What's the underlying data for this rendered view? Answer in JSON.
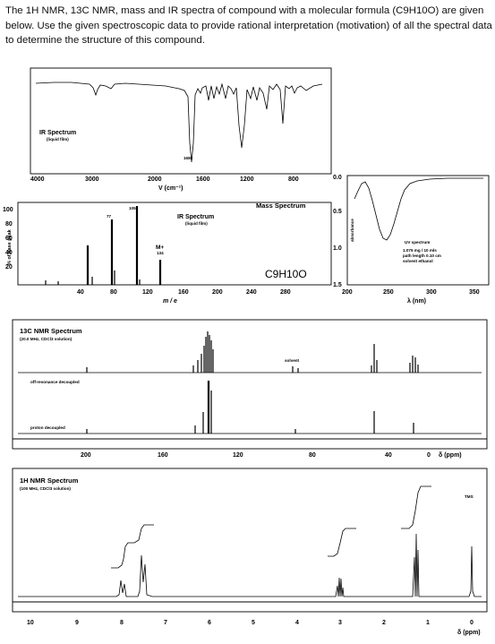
{
  "question": "The 1H NMR, 13C NMR, mass and IR spectra of compound with a molecular formula (C9H10O) are given below. Use the given spectroscopic data to provide rational interpretation (motivation) of all the spectral data to determine the structure of this compound.",
  "ir": {
    "title": "IR Spectrum",
    "subtitle": "(liquid film)",
    "peak_label": "1680",
    "ticks": [
      "4000",
      "3000",
      "2000",
      "1600",
      "1200",
      "800"
    ],
    "xlabel": "V (cm⁻¹)"
  },
  "ms": {
    "title": "Mass Spectrum",
    "ylabel": "% of base peak",
    "yticks": [
      "100",
      "80",
      "60",
      "40",
      "20"
    ],
    "xticks": [
      "40",
      "80",
      "120",
      "160",
      "200",
      "240",
      "280"
    ],
    "xlabel": "m / e",
    "peak_77": "77",
    "peak_105": "105",
    "mplus": "M+",
    "mplus_value": "134",
    "formula": "C9H10O",
    "overlay_title": "IR Spectrum",
    "overlay_subtitle": "(liquid film)"
  },
  "uv": {
    "ylabel": "absorbance",
    "yticks": [
      "0.0",
      "0.5",
      "1.0",
      "1.5"
    ],
    "xticks": [
      "200",
      "250",
      "300",
      "350"
    ],
    "xlabel": "λ (nm)",
    "title": "UV spectrum",
    "info": [
      "1.075 mg / 10 mls",
      "path length  0.10 cm",
      "solvent   ethanol"
    ]
  },
  "c13": {
    "title": "13C NMR Spectrum",
    "subtitle": "(20.0 MHz, CDCl3 solution)",
    "solvent": "solvent",
    "off_resonance": "off-resonance decoupled",
    "proton_decoupled": "proton decoupled",
    "xticks": [
      "200",
      "160",
      "120",
      "80",
      "40",
      "0"
    ],
    "xlabel": "δ (ppm)"
  },
  "h1": {
    "title": "1H NMR Spectrum",
    "subtitle": "(100 MHz, CDCl3 solution)",
    "tms": "TMS",
    "xticks": [
      "10",
      "9",
      "8",
      "7",
      "6",
      "5",
      "4",
      "3",
      "2",
      "1",
      "0"
    ],
    "xlabel": "δ (ppm)"
  }
}
